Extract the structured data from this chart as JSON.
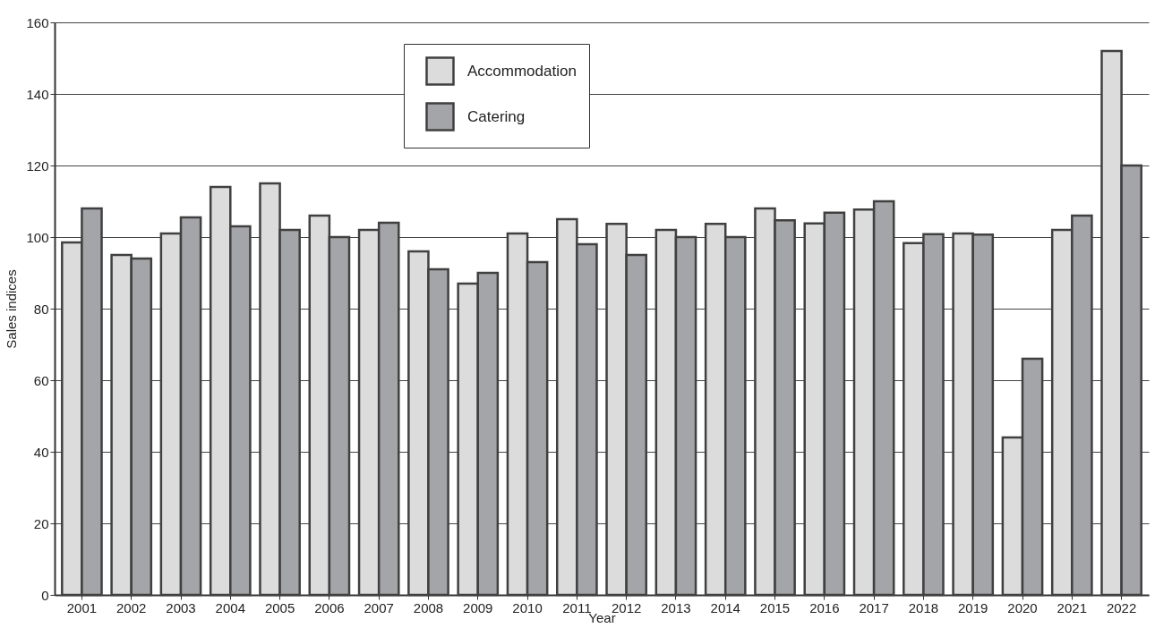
{
  "chart_data": {
    "type": "bar",
    "xlabel": "Year",
    "ylabel": "Sales indices",
    "categories": [
      "2001",
      "2002",
      "2003",
      "2004",
      "2005",
      "2006",
      "2007",
      "2008",
      "2009",
      "2010",
      "2011",
      "2012",
      "2013",
      "2014",
      "2015",
      "2016",
      "2017",
      "2018",
      "2019",
      "2020",
      "2021",
      "2022"
    ],
    "series": [
      {
        "name": "Accommodation",
        "color": "#dcdcdd",
        "values": [
          98.5,
          95,
          101,
          114,
          115,
          106,
          102,
          96,
          87,
          101,
          105,
          103.7,
          102,
          103.7,
          108,
          103.8,
          107.7,
          98.3,
          101,
          44,
          102,
          152
        ]
      },
      {
        "name": "Catering",
        "color": "#a4a5a8",
        "values": [
          108,
          94,
          105.5,
          103,
          102,
          100,
          104,
          91,
          90,
          93,
          98,
          95,
          100,
          100,
          104.7,
          106.8,
          110,
          100.8,
          100.7,
          66,
          106,
          120
        ]
      }
    ],
    "ylim": [
      0,
      160
    ],
    "yticks": [
      0,
      20,
      40,
      60,
      80,
      100,
      120,
      140,
      160
    ],
    "grid": "y",
    "legend": "top"
  }
}
